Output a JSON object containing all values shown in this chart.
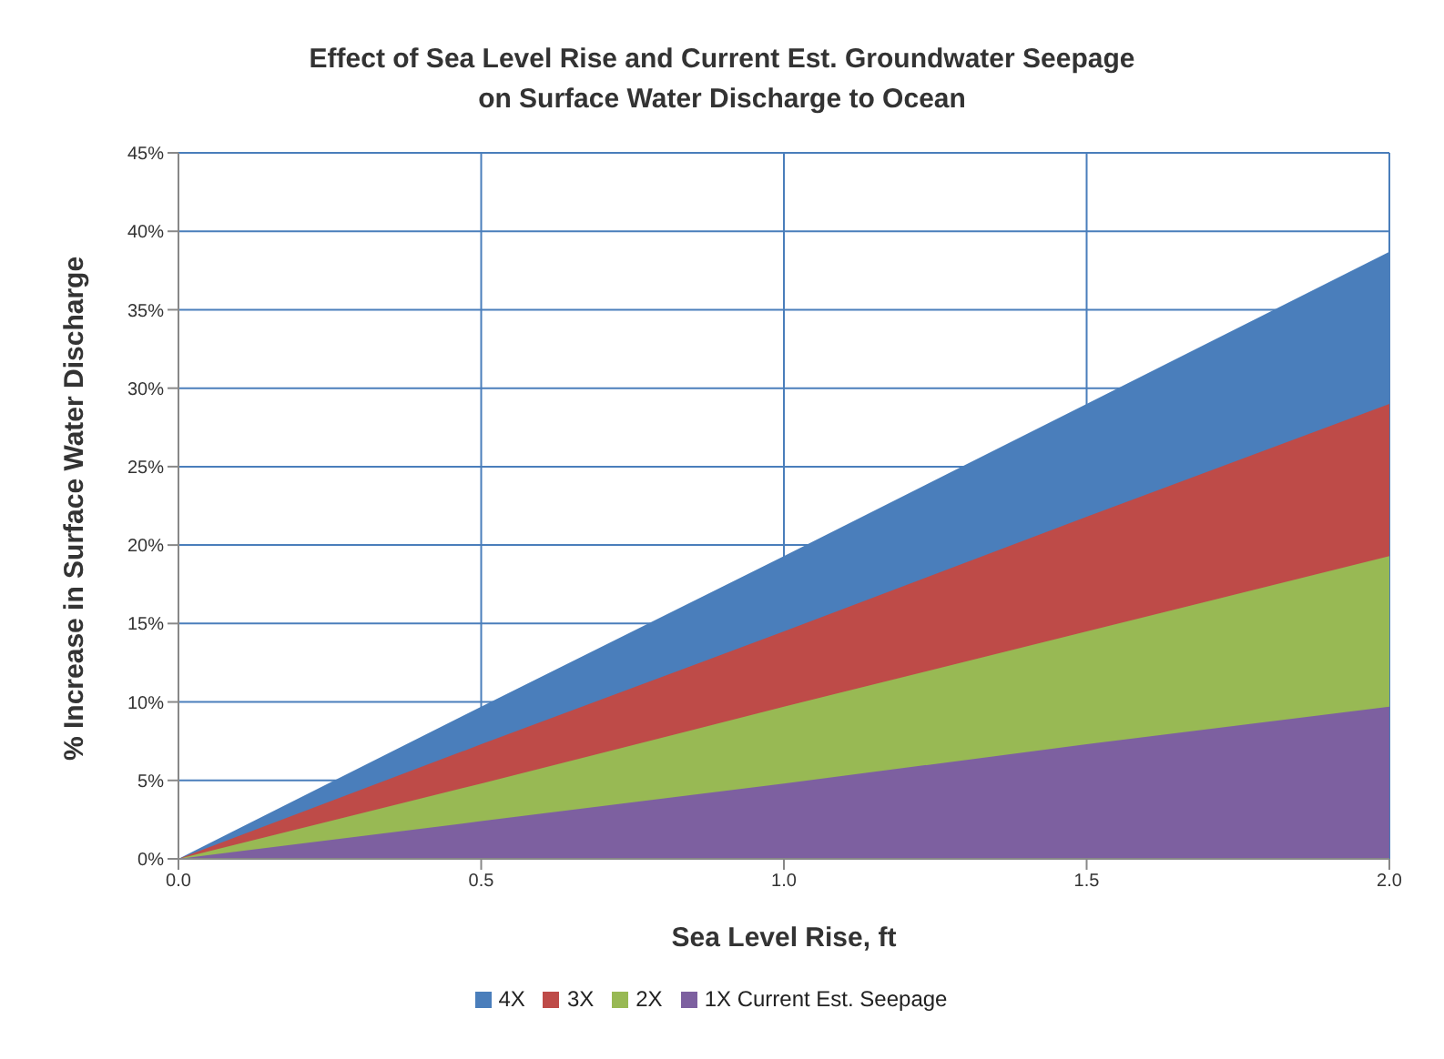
{
  "chart_data": {
    "type": "area",
    "title": "Effect of Sea Level Rise and Current Est. Groundwater Seepage\non Surface Water Discharge to Ocean",
    "xlabel": "Sea Level Rise, ft",
    "ylabel": "% Increase in Surface Water Discharge",
    "x": [
      0,
      0.5,
      1,
      1.5,
      2
    ],
    "series": [
      {
        "name": "4X",
        "color": "#4a7ebb",
        "values": [
          0,
          9.7,
          19.3,
          29,
          38.7
        ]
      },
      {
        "name": "3X",
        "color": "#be4b48",
        "values": [
          0,
          7.3,
          14.5,
          21.8,
          29
        ]
      },
      {
        "name": "2X",
        "color": "#98b954",
        "values": [
          0,
          4.8,
          9.7,
          14.5,
          19.3
        ]
      },
      {
        "name": "1X Current Est. Seepage",
        "color": "#7d60a0",
        "values": [
          0,
          2.4,
          4.8,
          7.3,
          9.7
        ]
      }
    ],
    "xlim": [
      0,
      2
    ],
    "xticks": [
      {
        "value": 0,
        "label": "0.0"
      },
      {
        "value": 0.5,
        "label": "0.5"
      },
      {
        "value": 1,
        "label": "1.0"
      },
      {
        "value": 1.5,
        "label": "1.5"
      },
      {
        "value": 2,
        "label": "2.0"
      }
    ],
    "ylim": [
      0,
      45
    ],
    "yticks": [
      {
        "value": 0,
        "label": "0%"
      },
      {
        "value": 5,
        "label": "5%"
      },
      {
        "value": 10,
        "label": "10%"
      },
      {
        "value": 15,
        "label": "15%"
      },
      {
        "value": 20,
        "label": "20%"
      },
      {
        "value": 25,
        "label": "25%"
      },
      {
        "value": 30,
        "label": "30%"
      },
      {
        "value": 35,
        "label": "35%"
      },
      {
        "value": 40,
        "label": "40%"
      },
      {
        "value": 45,
        "label": "45%"
      }
    ],
    "grid": true,
    "legend": "bottom"
  }
}
